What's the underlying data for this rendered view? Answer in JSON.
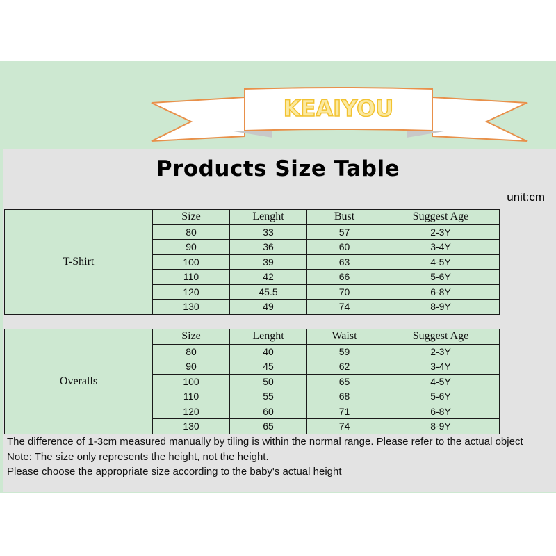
{
  "brand": "KEAIYOU",
  "title": "Products Size Table",
  "unit": "unit:cm",
  "colors": {
    "banner_bg": "#cde8d1",
    "ribbon_stroke": "#e8904a",
    "brand_text": "#f7d24a",
    "table_bg": "#cde8d1",
    "page_gray": "#e3e3e3"
  },
  "tables": [
    {
      "product": "T-Shirt",
      "headers": [
        "Size",
        "Lenght",
        "Bust",
        "Suggest Age"
      ],
      "rows": [
        [
          "80",
          "33",
          "57",
          "2-3Y"
        ],
        [
          "90",
          "36",
          "60",
          "3-4Y"
        ],
        [
          "100",
          "39",
          "63",
          "4-5Y"
        ],
        [
          "110",
          "42",
          "66",
          "5-6Y"
        ],
        [
          "120",
          "45.5",
          "70",
          "6-8Y"
        ],
        [
          "130",
          "49",
          "74",
          "8-9Y"
        ]
      ]
    },
    {
      "product": "Overalls",
      "headers": [
        "Size",
        "Lenght",
        "Waist",
        "Suggest Age"
      ],
      "rows": [
        [
          "80",
          "40",
          "59",
          "2-3Y"
        ],
        [
          "90",
          "45",
          "62",
          "3-4Y"
        ],
        [
          "100",
          "50",
          "65",
          "4-5Y"
        ],
        [
          "110",
          "55",
          "68",
          "5-6Y"
        ],
        [
          "120",
          "60",
          "71",
          "6-8Y"
        ],
        [
          "130",
          "65",
          "74",
          "8-9Y"
        ]
      ]
    }
  ],
  "notes": [
    "The difference of 1-3cm measured manually by tiling is within the normal range. Please refer to the actual object",
    "Note: The size only represents the height, not the height.",
    "Please choose the appropriate size according to the baby's actual height"
  ]
}
